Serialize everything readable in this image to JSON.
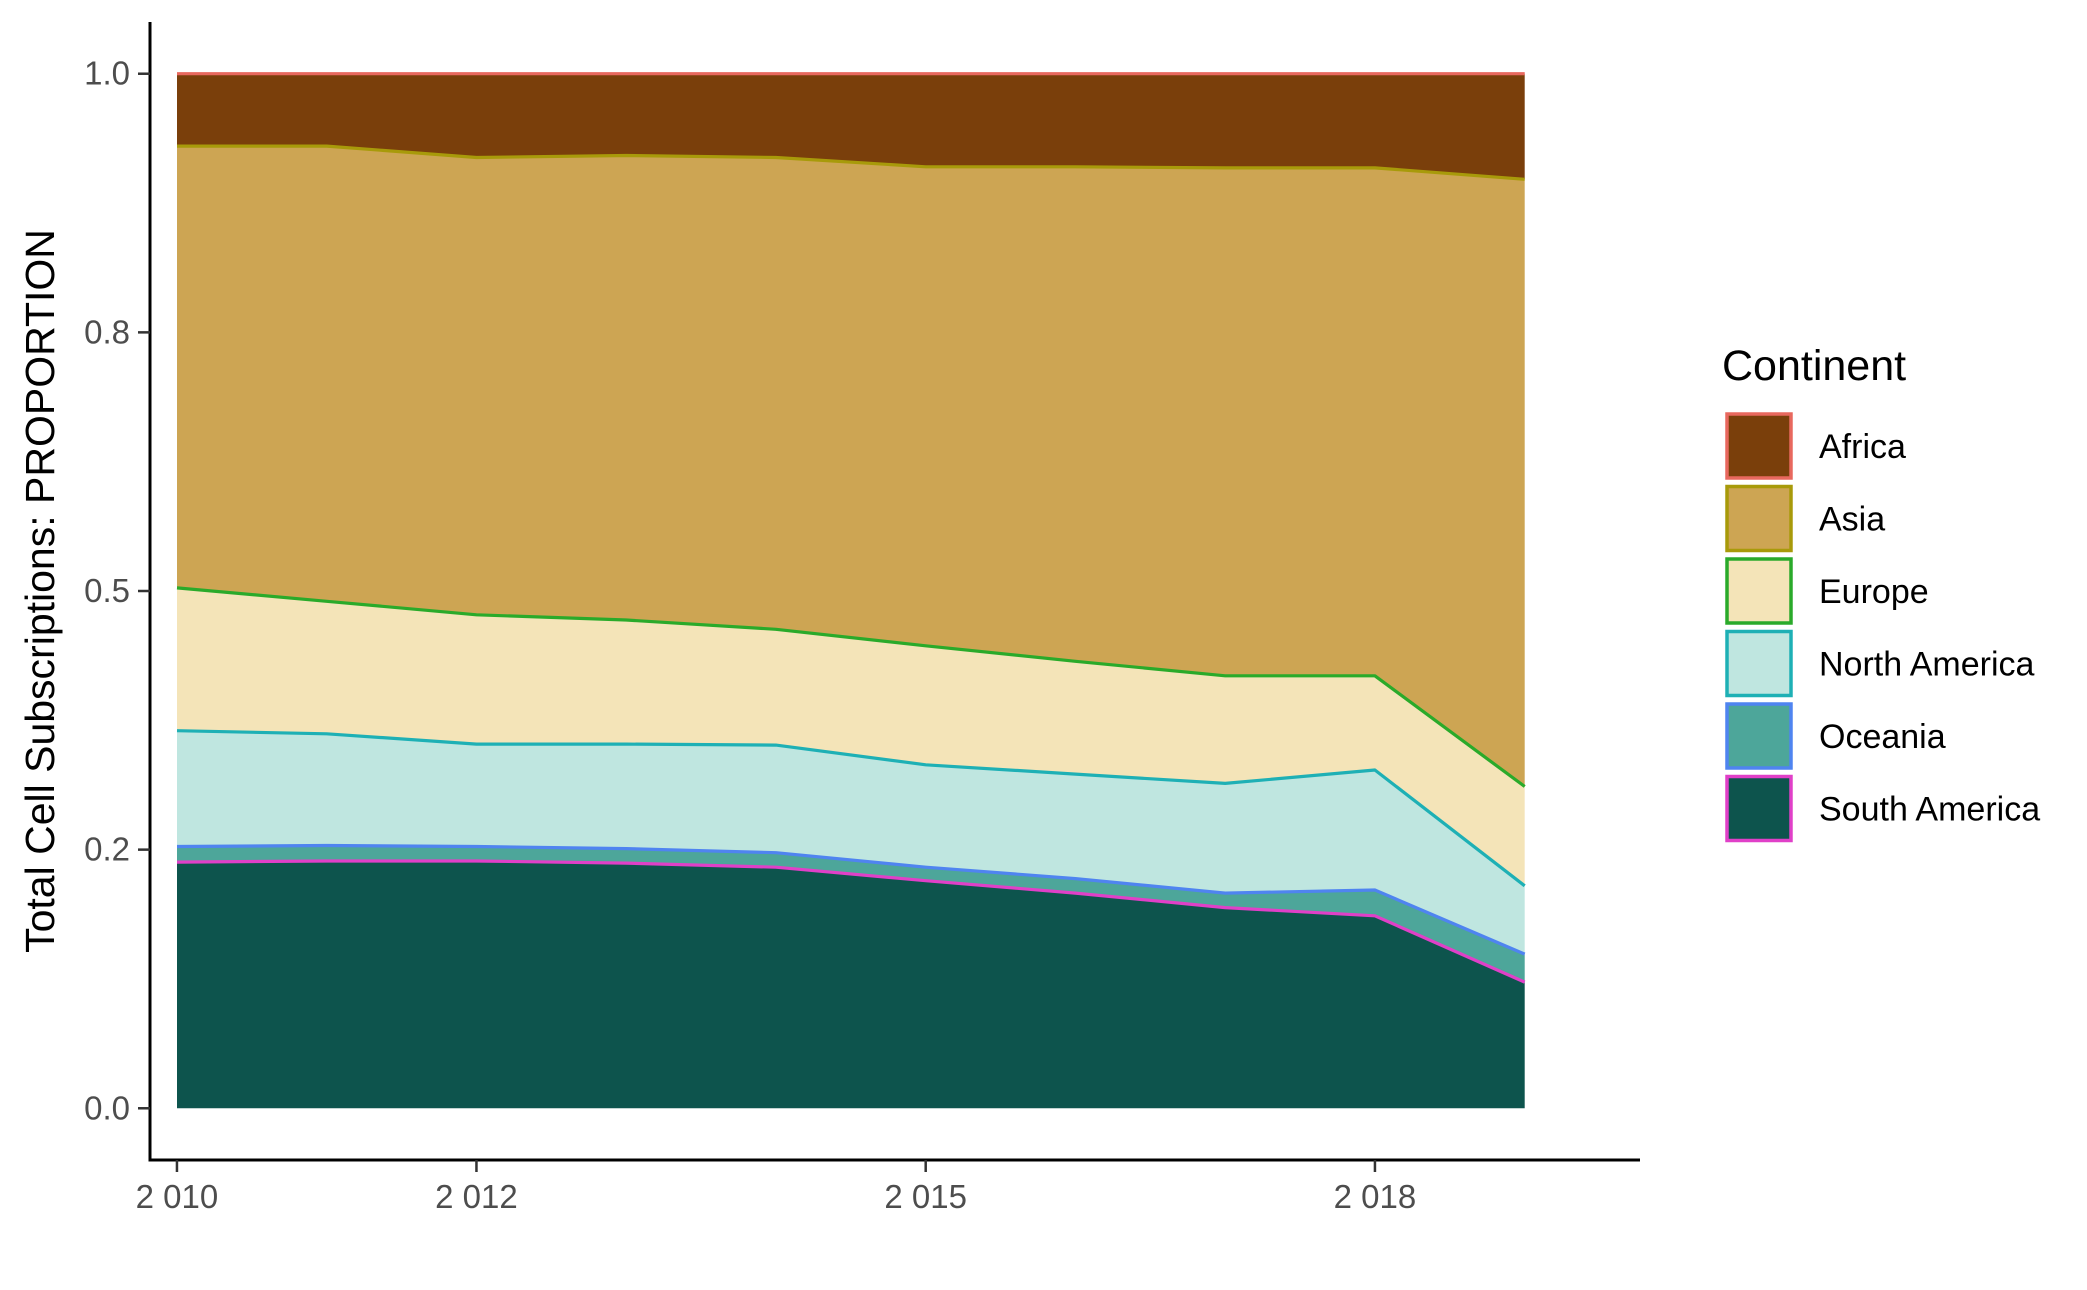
{
  "chart_data": {
    "type": "area",
    "stacked": true,
    "ylabel": "Total Cell Subscriptions: PROPORTION",
    "xlabel": "",
    "x": [
      2010,
      2011,
      2012,
      2013,
      2014,
      2015,
      2016,
      2017,
      2018,
      2019
    ],
    "x_tick_values": [
      2010,
      2012,
      2015,
      2018
    ],
    "x_tick_labels": [
      "2 010",
      "2 012",
      "2 015",
      "2 018"
    ],
    "y_tick_values": [
      0.0,
      0.25,
      0.5,
      0.75,
      1.0
    ],
    "y_tick_labels": [
      "0.0",
      "0.2",
      "0.5",
      "0.8",
      "1.0"
    ],
    "xlim": [
      2009.82,
      2019.77
    ],
    "ylim": [
      -0.05,
      1.05
    ],
    "grid": false,
    "legend": {
      "title": "Continent",
      "position": "right"
    },
    "series": [
      {
        "name": "South America",
        "fill": "#0d544d",
        "line": "#e040c8",
        "values": [
          0.238,
          0.239,
          0.239,
          0.237,
          0.233,
          0.22,
          0.208,
          0.194,
          0.186,
          0.122
        ]
      },
      {
        "name": "Oceania",
        "fill": "#4da69a",
        "line": "#4f84f0",
        "values": [
          0.015,
          0.015,
          0.014,
          0.014,
          0.014,
          0.013,
          0.014,
          0.014,
          0.025,
          0.027
        ]
      },
      {
        "name": "North America",
        "fill": "#bfe6e0",
        "line": "#1eb0b5",
        "values": [
          0.112,
          0.108,
          0.099,
          0.101,
          0.104,
          0.099,
          0.101,
          0.106,
          0.116,
          0.066
        ]
      },
      {
        "name": "Europe",
        "fill": "#f4e4b8",
        "line": "#2aaa2a",
        "values": [
          0.138,
          0.128,
          0.125,
          0.12,
          0.112,
          0.115,
          0.109,
          0.104,
          0.091,
          0.096
        ]
      },
      {
        "name": "Asia",
        "fill": "#cda553",
        "line": "#a89a0a",
        "values": [
          0.427,
          0.44,
          0.442,
          0.449,
          0.456,
          0.463,
          0.478,
          0.491,
          0.491,
          0.587
        ]
      },
      {
        "name": "Africa",
        "fill": "#7a3f0b",
        "line": "#e8685e",
        "values": [
          0.07,
          0.07,
          0.081,
          0.079,
          0.081,
          0.09,
          0.09,
          0.091,
          0.091,
          0.102
        ]
      }
    ]
  }
}
